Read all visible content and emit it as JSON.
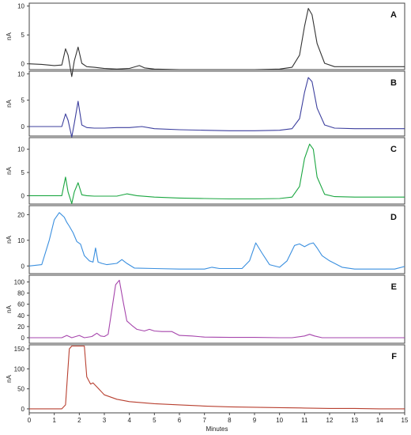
{
  "chart_data": {
    "type": "line",
    "xlabel": "Minutes",
    "xlim": [
      0,
      15
    ],
    "x_ticks": [
      "0",
      "1",
      "2",
      "3",
      "4",
      "5",
      "6",
      "7",
      "8",
      "9",
      "10",
      "11",
      "12",
      "13",
      "14",
      "15"
    ],
    "panels": [
      {
        "label": "A",
        "ylabel": "nA",
        "ylim": [
          -1,
          10.5
        ],
        "y_ticks": [
          "0",
          "5",
          "10"
        ],
        "color": "#333333",
        "series": [
          {
            "x": [
              0,
              0.5,
              1,
              1.3,
              1.45,
              1.55,
              1.7,
              1.8,
              1.95,
              2.1,
              2.3,
              2.6,
              3,
              3.5,
              4,
              4.4,
              4.6,
              5,
              6,
              7,
              8,
              9,
              10,
              10.5,
              10.8,
              11,
              11.15,
              11.3,
              11.5,
              11.8,
              12.2,
              13,
              14,
              15
            ],
            "y": [
              0,
              -0.1,
              -0.3,
              -0.2,
              2.6,
              1.5,
              -2.2,
              0.5,
              2.9,
              0.1,
              -0.5,
              -0.6,
              -0.8,
              -0.9,
              -0.8,
              -0.3,
              -0.7,
              -0.9,
              -1,
              -1,
              -1,
              -1,
              -0.9,
              -0.6,
              1.5,
              6.5,
              9.6,
              8.5,
              3.5,
              0.1,
              -0.5,
              -0.5,
              -0.5,
              -0.5
            ]
          }
        ]
      },
      {
        "label": "B",
        "ylabel": "nA",
        "ylim": [
          -1.8,
          10.5
        ],
        "y_ticks": [
          "0",
          "5",
          "10"
        ],
        "color": "#3c3f9e",
        "series": [
          {
            "x": [
              0,
              0.5,
              1,
              1.3,
              1.45,
              1.55,
              1.7,
              1.8,
              1.95,
              2.1,
              2.3,
              2.6,
              3,
              3.5,
              4,
              4.5,
              5,
              6,
              7,
              8,
              9,
              10,
              10.5,
              10.8,
              11,
              11.15,
              11.3,
              11.5,
              11.8,
              12.2,
              13,
              14,
              15
            ],
            "y": [
              0,
              0,
              0,
              0,
              2.4,
              1.2,
              -2,
              0.6,
              4.8,
              0.3,
              -0.2,
              -0.3,
              -0.3,
              -0.2,
              -0.2,
              0,
              -0.4,
              -0.6,
              -0.7,
              -0.8,
              -0.8,
              -0.7,
              -0.4,
              1.5,
              6.5,
              9.3,
              8.5,
              3.5,
              0.3,
              -0.3,
              -0.4,
              -0.4,
              -0.4
            ]
          }
        ]
      },
      {
        "label": "C",
        "ylabel": "nA",
        "ylim": [
          -1.8,
          12.5
        ],
        "y_ticks": [
          "0",
          "5",
          "10"
        ],
        "color": "#1aa640",
        "series": [
          {
            "x": [
              0,
              0.5,
              1,
              1.3,
              1.45,
              1.55,
              1.7,
              1.8,
              1.95,
              2.1,
              2.3,
              2.6,
              3,
              3.5,
              3.9,
              4.3,
              5,
              6,
              7,
              8,
              9,
              10,
              10.5,
              10.8,
              11,
              11.2,
              11.35,
              11.5,
              11.8,
              12.2,
              13,
              14,
              15
            ],
            "y": [
              0,
              0,
              0,
              0,
              4,
              0.8,
              -1.7,
              0.8,
              2.8,
              0.2,
              0,
              -0.1,
              -0.1,
              -0.1,
              0.4,
              0,
              -0.3,
              -0.5,
              -0.6,
              -0.7,
              -0.7,
              -0.6,
              -0.3,
              2,
              8,
              11.1,
              10,
              4,
              0.3,
              -0.2,
              -0.3,
              -0.3,
              -0.3
            ]
          }
        ]
      },
      {
        "label": "D",
        "ylabel": "nA",
        "ylim": [
          -3,
          23.5
        ],
        "y_ticks": [
          "0",
          "10",
          "20"
        ],
        "color": "#3a8fdf",
        "series": [
          {
            "x": [
              0,
              0.5,
              0.8,
              1,
              1.2,
              1.4,
              1.5,
              1.6,
              1.75,
              1.9,
              2.05,
              2.2,
              2.4,
              2.55,
              2.65,
              2.75,
              2.9,
              3.1,
              3.5,
              3.7,
              3.9,
              4.2,
              5,
              6,
              7,
              7.3,
              7.6,
              8,
              8.5,
              8.8,
              9.05,
              9.3,
              9.6,
              10,
              10.3,
              10.6,
              10.8,
              11,
              11.2,
              11.35,
              11.5,
              11.7,
              12,
              12.5,
              13,
              14,
              14.6,
              15
            ],
            "y": [
              0,
              0.5,
              10,
              18,
              20.8,
              19,
              17,
              15.5,
              13,
              9.5,
              8.5,
              4,
              2,
              1.5,
              7,
              1.5,
              1,
              0.5,
              1,
              2.5,
              1,
              -0.8,
              -1,
              -1.2,
              -1.2,
              -0.5,
              -1,
              -1,
              -1,
              2,
              9,
              5,
              0.5,
              -0.5,
              2,
              8,
              8.6,
              7.5,
              8.6,
              9,
              7,
              4,
              2,
              -0.5,
              -1.2,
              -1.2,
              -1.2,
              -0.2
            ]
          }
        ]
      },
      {
        "label": "E",
        "ylabel": "nA",
        "ylim": [
          -10,
          112
        ],
        "y_ticks": [
          "0",
          "20",
          "40",
          "60",
          "80",
          "100"
        ],
        "color": "#a645ac",
        "series": [
          {
            "x": [
              0,
              0.5,
              1,
              1.3,
              1.5,
              1.7,
              2,
              2.2,
              2.5,
              2.7,
              2.85,
              3,
              3.15,
              3.3,
              3.45,
              3.6,
              3.75,
              3.9,
              4.1,
              4.3,
              4.6,
              4.8,
              5,
              5.3,
              5.7,
              6,
              6.5,
              7,
              8,
              9,
              10,
              10.5,
              11,
              11.2,
              11.4,
              11.7,
              12,
              13,
              14,
              15
            ],
            "y": [
              0,
              0,
              0,
              0,
              4,
              0,
              4,
              0,
              2,
              8,
              3,
              2,
              6,
              50,
              95,
              103,
              65,
              30,
              22,
              15,
              12,
              15,
              12,
              11,
              11,
              4,
              3,
              1,
              0.5,
              0.5,
              0,
              0,
              3,
              6,
              3,
              0,
              0,
              0,
              0,
              0
            ]
          }
        ]
      },
      {
        "label": "F",
        "ylabel": "nA",
        "ylim": [
          -10,
          160
        ],
        "y_ticks": [
          "0",
          "50",
          "100",
          "150"
        ],
        "color": "#b84030",
        "series": [
          {
            "x": [
              0,
              0.5,
              1,
              1.3,
              1.45,
              1.6,
              1.7,
              1.8,
              2,
              2.2,
              2.3,
              2.45,
              2.55,
              2.7,
              3,
              3.5,
              4,
              5,
              6,
              7,
              8,
              9,
              10,
              11,
              12,
              13,
              14,
              15
            ],
            "y": [
              0,
              0,
              0,
              0,
              10,
              150,
              157,
              157,
              157,
              157,
              80,
              62,
              65,
              55,
              35,
              24,
              18,
              13,
              10,
              7,
              5,
              4,
              3,
              2,
              1,
              1,
              0,
              0
            ]
          }
        ]
      }
    ]
  }
}
